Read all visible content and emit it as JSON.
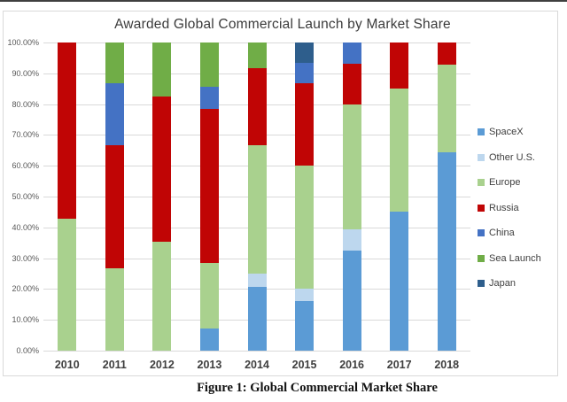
{
  "figure": {
    "title": "Awarded Global Commercial Launch by Market Share",
    "caption": "Figure 1: Global Commercial Market Share"
  },
  "chart_data": {
    "type": "bar",
    "stacked": true,
    "title": "Awarded Global Commercial Launch by Market Share",
    "xlabel": "",
    "ylabel": "",
    "ylim": [
      0,
      100
    ],
    "grid": true,
    "legend_position": "right",
    "categories": [
      "2010",
      "2011",
      "2012",
      "2013",
      "2014",
      "2015",
      "2016",
      "2017",
      "2018"
    ],
    "yticks": [
      "0.00%",
      "10.00%",
      "20.00%",
      "30.00%",
      "40.00%",
      "50.00%",
      "60.00%",
      "70.00%",
      "80.00%",
      "90.00%",
      "100.00%"
    ],
    "series": [
      {
        "name": "SpaceX",
        "color": "#5B9BD5",
        "values": [
          0,
          0,
          0,
          7.14,
          20.83,
          16.0,
          32.4,
          45.0,
          64.3
        ]
      },
      {
        "name": "Other U.S.",
        "color": "#BDD7EE",
        "values": [
          0,
          0,
          0,
          0,
          4.17,
          4.0,
          7.0,
          0,
          0
        ]
      },
      {
        "name": "Europe",
        "color": "#A9D18E",
        "values": [
          42.86,
          26.67,
          35.29,
          21.43,
          41.67,
          40.0,
          40.4,
          40.0,
          28.6
        ]
      },
      {
        "name": "Russia",
        "color": "#C00505",
        "values": [
          57.14,
          40.0,
          47.06,
          50.0,
          25.0,
          26.66,
          13.4,
          15.0,
          7.1
        ]
      },
      {
        "name": "China",
        "color": "#4472C4",
        "values": [
          0,
          20.0,
          0,
          7.14,
          0,
          6.67,
          6.8,
          0,
          0
        ]
      },
      {
        "name": "Sea Launch",
        "color": "#70AD47",
        "values": [
          0,
          13.33,
          17.65,
          14.29,
          8.33,
          0,
          0,
          0,
          0
        ]
      },
      {
        "name": "Japan",
        "color": "#2E5E8C",
        "values": [
          0,
          0,
          0,
          0,
          0,
          6.67,
          0,
          0,
          0
        ]
      }
    ],
    "colors": {
      "gridline": "#d9d9d9",
      "axis_text": "#595959",
      "category_text": "#3f3f3f",
      "title_text": "#3b3b3b",
      "legend_text": "#404040"
    }
  }
}
